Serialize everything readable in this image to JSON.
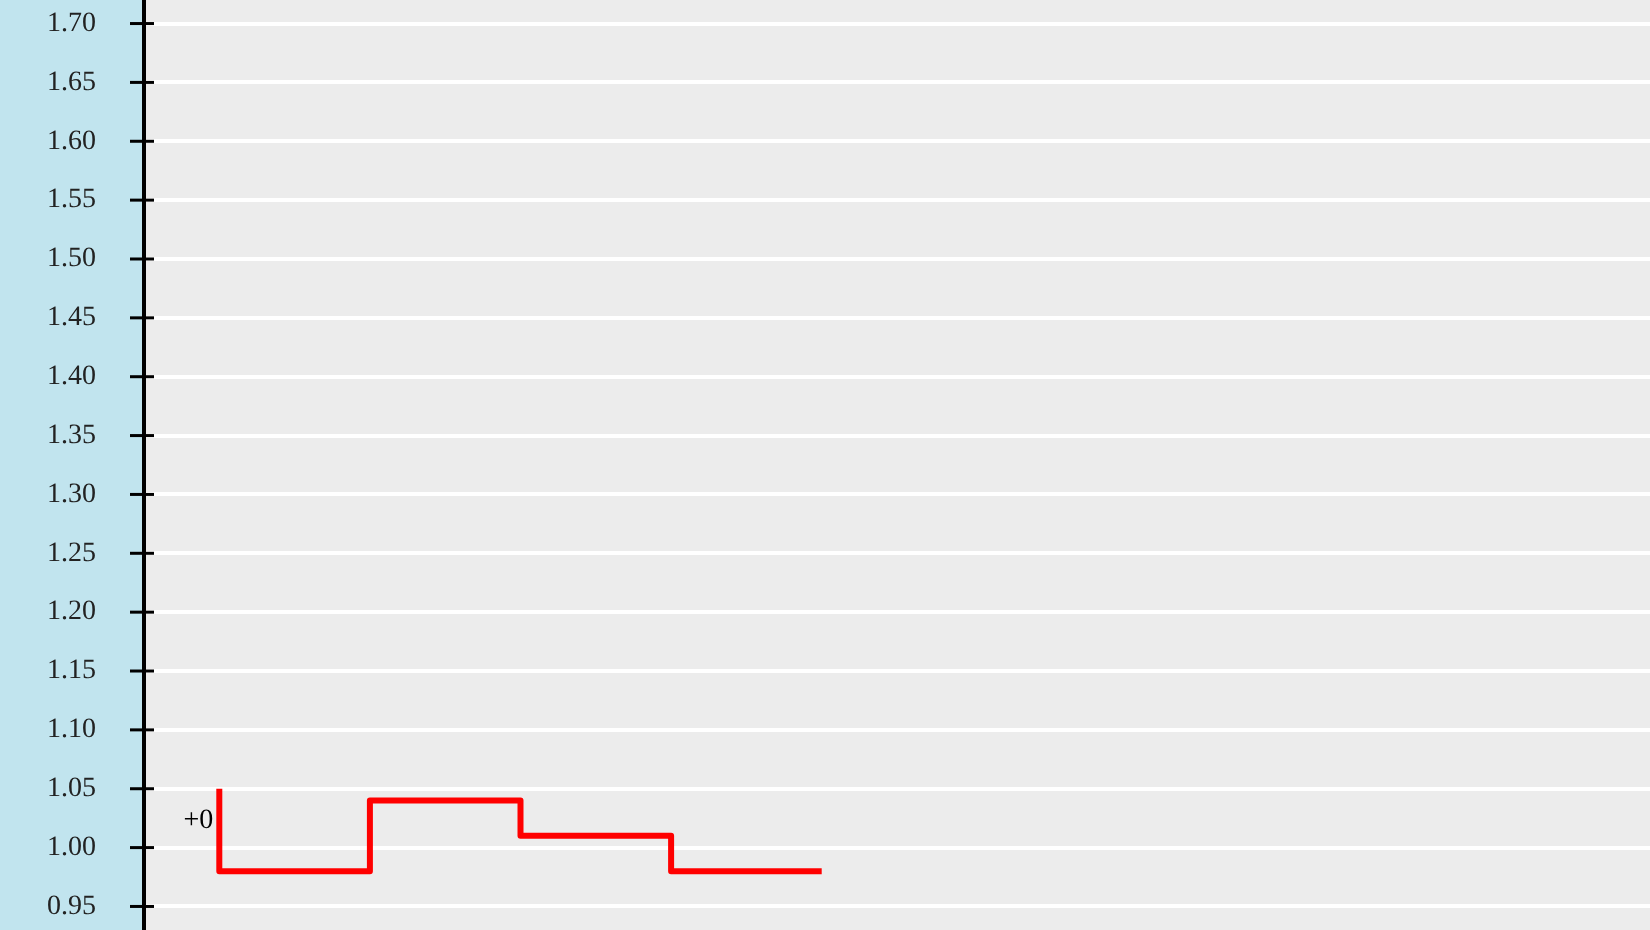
{
  "chart_data": {
    "type": "step",
    "categories": [
      null,
      null,
      null,
      null,
      null,
      null,
      null,
      null,
      null,
      null
    ],
    "values": [
      1.05,
      0.98,
      1.04,
      1.01,
      0.98,
      null,
      null,
      null,
      null,
      null
    ],
    "color": "#ff0000",
    "ylim": [
      0.93,
      1.72
    ],
    "yticks": [
      {
        "value": 0.95,
        "label": "0.95"
      },
      {
        "value": 1.0,
        "label": "1.00"
      },
      {
        "value": 1.05,
        "label": "1.05"
      },
      {
        "value": 1.1,
        "label": "1.10"
      },
      {
        "value": 1.15,
        "label": "1.15"
      },
      {
        "value": 1.2,
        "label": "1.20"
      },
      {
        "value": 1.25,
        "label": "1.25"
      },
      {
        "value": 1.3,
        "label": "1.30"
      },
      {
        "value": 1.35,
        "label": "1.35"
      },
      {
        "value": 1.4,
        "label": "1.40"
      },
      {
        "value": 1.45,
        "label": "1.45"
      },
      {
        "value": 1.5,
        "label": "1.50"
      },
      {
        "value": 1.55,
        "label": "1.55"
      },
      {
        "value": 1.6,
        "label": "1.60"
      },
      {
        "value": 1.65,
        "label": "1.65"
      },
      {
        "value": 1.7,
        "label": "1.70"
      }
    ],
    "grid": "y",
    "tick_labels": "y",
    "annotations": [
      "+0"
    ]
  }
}
